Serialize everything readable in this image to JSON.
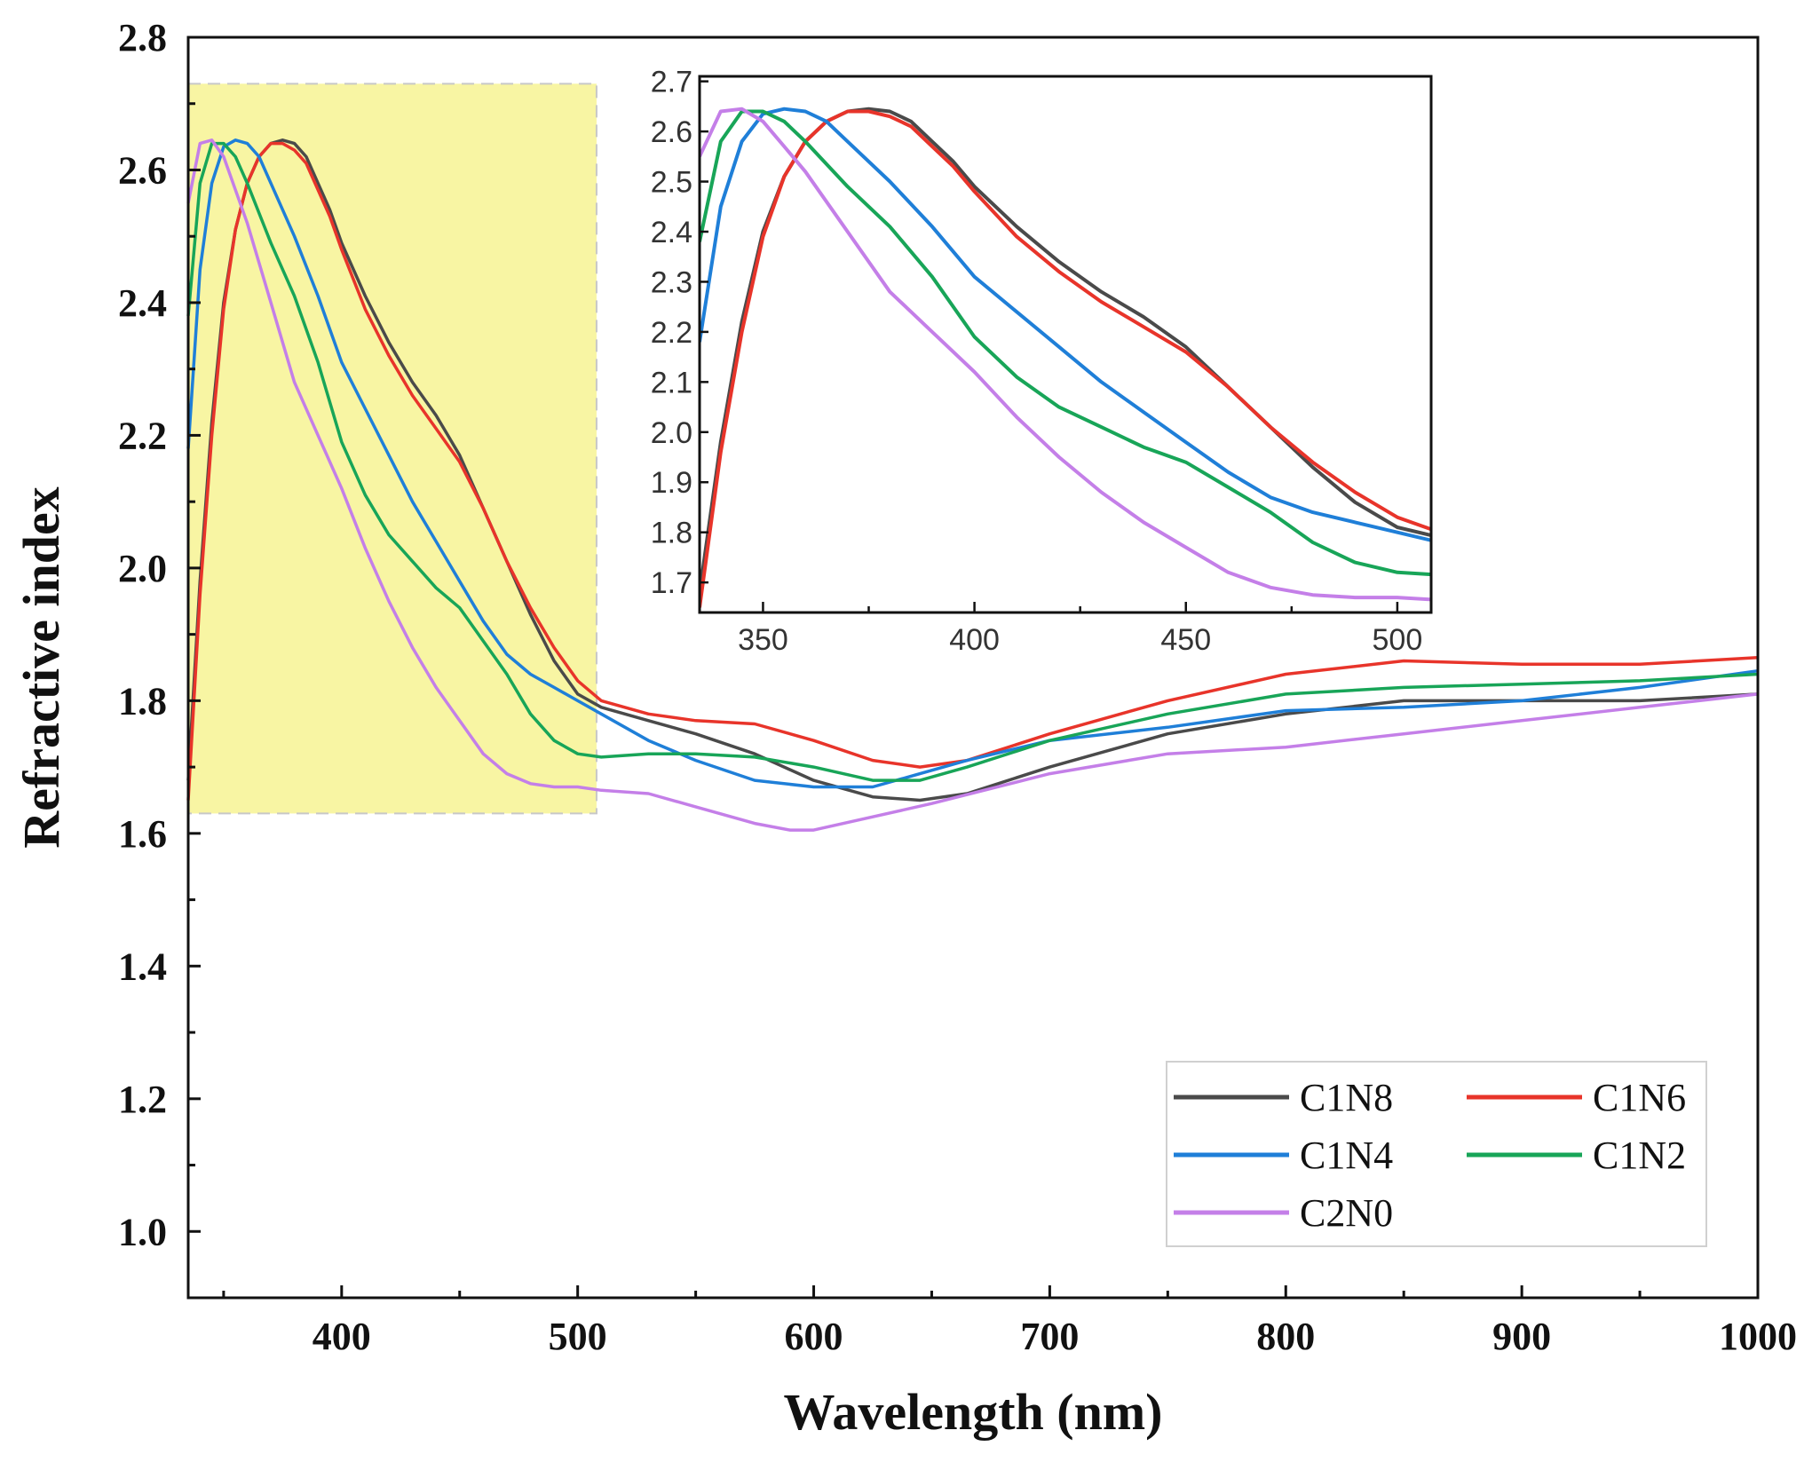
{
  "chart_data": {
    "type": "line",
    "xlabel": "Wavelength (nm)",
    "ylabel": "Refractive index",
    "xlim": [
      335,
      1000
    ],
    "ylim": [
      0.9,
      2.8
    ],
    "x_ticks": [
      400,
      500,
      600,
      700,
      800,
      900,
      1000
    ],
    "x_tick_labels": [
      "400",
      "500",
      "600",
      "700",
      "800",
      "900",
      "1000"
    ],
    "y_ticks": [
      1.0,
      1.2,
      1.4,
      1.6,
      1.8,
      2.0,
      2.2,
      2.4,
      2.6,
      2.8
    ],
    "y_tick_labels": [
      "1.0",
      "1.2",
      "1.4",
      "1.6",
      "1.8",
      "2.0",
      "2.2",
      "2.4",
      "2.6",
      "2.8"
    ],
    "highlight_region": {
      "x": [
        335,
        508
      ],
      "y": [
        1.63,
        2.73
      ],
      "color": "#f8f5a3"
    },
    "legend_position": "bottom-right",
    "series": [
      {
        "name": "C1N8",
        "color": "#4a4a4a",
        "points": [
          [
            335,
            1.68
          ],
          [
            340,
            1.98
          ],
          [
            345,
            2.22
          ],
          [
            350,
            2.4
          ],
          [
            355,
            2.51
          ],
          [
            360,
            2.58
          ],
          [
            365,
            2.62
          ],
          [
            370,
            2.64
          ],
          [
            375,
            2.645
          ],
          [
            380,
            2.64
          ],
          [
            385,
            2.62
          ],
          [
            390,
            2.58
          ],
          [
            395,
            2.54
          ],
          [
            400,
            2.49
          ],
          [
            410,
            2.41
          ],
          [
            420,
            2.34
          ],
          [
            430,
            2.28
          ],
          [
            440,
            2.23
          ],
          [
            450,
            2.17
          ],
          [
            460,
            2.09
          ],
          [
            470,
            2.01
          ],
          [
            480,
            1.93
          ],
          [
            490,
            1.86
          ],
          [
            500,
            1.81
          ],
          [
            510,
            1.79
          ],
          [
            530,
            1.77
          ],
          [
            550,
            1.75
          ],
          [
            575,
            1.72
          ],
          [
            600,
            1.68
          ],
          [
            625,
            1.655
          ],
          [
            645,
            1.65
          ],
          [
            665,
            1.66
          ],
          [
            700,
            1.7
          ],
          [
            750,
            1.75
          ],
          [
            800,
            1.78
          ],
          [
            850,
            1.8
          ],
          [
            900,
            1.8
          ],
          [
            950,
            1.8
          ],
          [
            1000,
            1.81
          ]
        ]
      },
      {
        "name": "C1N6",
        "color": "#e8342a",
        "points": [
          [
            335,
            1.65
          ],
          [
            340,
            1.96
          ],
          [
            345,
            2.2
          ],
          [
            350,
            2.39
          ],
          [
            355,
            2.51
          ],
          [
            360,
            2.58
          ],
          [
            365,
            2.62
          ],
          [
            370,
            2.64
          ],
          [
            375,
            2.64
          ],
          [
            380,
            2.63
          ],
          [
            385,
            2.61
          ],
          [
            390,
            2.57
          ],
          [
            395,
            2.53
          ],
          [
            400,
            2.48
          ],
          [
            410,
            2.39
          ],
          [
            420,
            2.32
          ],
          [
            430,
            2.26
          ],
          [
            440,
            2.21
          ],
          [
            450,
            2.16
          ],
          [
            460,
            2.09
          ],
          [
            470,
            2.01
          ],
          [
            480,
            1.94
          ],
          [
            490,
            1.88
          ],
          [
            500,
            1.83
          ],
          [
            510,
            1.8
          ],
          [
            530,
            1.78
          ],
          [
            550,
            1.77
          ],
          [
            575,
            1.765
          ],
          [
            600,
            1.74
          ],
          [
            625,
            1.71
          ],
          [
            645,
            1.7
          ],
          [
            665,
            1.71
          ],
          [
            700,
            1.75
          ],
          [
            750,
            1.8
          ],
          [
            800,
            1.84
          ],
          [
            850,
            1.86
          ],
          [
            900,
            1.855
          ],
          [
            950,
            1.855
          ],
          [
            1000,
            1.865
          ]
        ]
      },
      {
        "name": "C1N4",
        "color": "#1f7fd8",
        "points": [
          [
            335,
            2.18
          ],
          [
            340,
            2.45
          ],
          [
            345,
            2.58
          ],
          [
            350,
            2.635
          ],
          [
            355,
            2.645
          ],
          [
            360,
            2.64
          ],
          [
            365,
            2.62
          ],
          [
            370,
            2.58
          ],
          [
            380,
            2.5
          ],
          [
            390,
            2.41
          ],
          [
            400,
            2.31
          ],
          [
            410,
            2.24
          ],
          [
            420,
            2.17
          ],
          [
            430,
            2.1
          ],
          [
            440,
            2.04
          ],
          [
            450,
            1.98
          ],
          [
            460,
            1.92
          ],
          [
            470,
            1.87
          ],
          [
            480,
            1.84
          ],
          [
            490,
            1.82
          ],
          [
            500,
            1.8
          ],
          [
            510,
            1.78
          ],
          [
            530,
            1.74
          ],
          [
            550,
            1.71
          ],
          [
            575,
            1.68
          ],
          [
            600,
            1.67
          ],
          [
            625,
            1.67
          ],
          [
            645,
            1.69
          ],
          [
            665,
            1.71
          ],
          [
            700,
            1.74
          ],
          [
            750,
            1.76
          ],
          [
            800,
            1.785
          ],
          [
            850,
            1.79
          ],
          [
            900,
            1.8
          ],
          [
            950,
            1.82
          ],
          [
            1000,
            1.845
          ]
        ]
      },
      {
        "name": "C1N2",
        "color": "#18a558",
        "points": [
          [
            335,
            2.38
          ],
          [
            340,
            2.58
          ],
          [
            345,
            2.64
          ],
          [
            350,
            2.64
          ],
          [
            355,
            2.62
          ],
          [
            360,
            2.58
          ],
          [
            370,
            2.49
          ],
          [
            380,
            2.41
          ],
          [
            390,
            2.31
          ],
          [
            400,
            2.19
          ],
          [
            410,
            2.11
          ],
          [
            420,
            2.05
          ],
          [
            430,
            2.01
          ],
          [
            440,
            1.97
          ],
          [
            450,
            1.94
          ],
          [
            460,
            1.89
          ],
          [
            470,
            1.84
          ],
          [
            480,
            1.78
          ],
          [
            490,
            1.74
          ],
          [
            500,
            1.72
          ],
          [
            510,
            1.715
          ],
          [
            530,
            1.72
          ],
          [
            550,
            1.72
          ],
          [
            575,
            1.715
          ],
          [
            600,
            1.7
          ],
          [
            625,
            1.68
          ],
          [
            645,
            1.68
          ],
          [
            665,
            1.7
          ],
          [
            700,
            1.74
          ],
          [
            750,
            1.78
          ],
          [
            800,
            1.81
          ],
          [
            850,
            1.82
          ],
          [
            900,
            1.825
          ],
          [
            950,
            1.83
          ],
          [
            1000,
            1.84
          ]
        ]
      },
      {
        "name": "C2N0",
        "color": "#c47fe8",
        "points": [
          [
            335,
            2.55
          ],
          [
            340,
            2.64
          ],
          [
            345,
            2.645
          ],
          [
            350,
            2.62
          ],
          [
            355,
            2.57
          ],
          [
            360,
            2.52
          ],
          [
            370,
            2.4
          ],
          [
            380,
            2.28
          ],
          [
            390,
            2.2
          ],
          [
            400,
            2.12
          ],
          [
            410,
            2.03
          ],
          [
            420,
            1.95
          ],
          [
            430,
            1.88
          ],
          [
            440,
            1.82
          ],
          [
            450,
            1.77
          ],
          [
            460,
            1.72
          ],
          [
            470,
            1.69
          ],
          [
            480,
            1.675
          ],
          [
            490,
            1.67
          ],
          [
            500,
            1.67
          ],
          [
            510,
            1.665
          ],
          [
            530,
            1.66
          ],
          [
            550,
            1.64
          ],
          [
            575,
            1.615
          ],
          [
            590,
            1.605
          ],
          [
            600,
            1.605
          ],
          [
            625,
            1.625
          ],
          [
            650,
            1.645
          ],
          [
            700,
            1.69
          ],
          [
            750,
            1.72
          ],
          [
            800,
            1.73
          ],
          [
            850,
            1.75
          ],
          [
            900,
            1.77
          ],
          [
            950,
            1.79
          ],
          [
            1000,
            1.81
          ]
        ]
      }
    ],
    "inset": {
      "xlim": [
        335,
        508
      ],
      "ylim": [
        1.64,
        2.71
      ],
      "x_ticks": [
        350,
        400,
        450,
        500
      ],
      "x_tick_labels": [
        "350",
        "400",
        "450",
        "500"
      ],
      "y_ticks": [
        1.7,
        1.8,
        1.9,
        2.0,
        2.1,
        2.2,
        2.3,
        2.4,
        2.5,
        2.6,
        2.7
      ],
      "y_tick_labels": [
        "1.7",
        "1.8",
        "1.9",
        "2.0",
        "2.1",
        "2.2",
        "2.3",
        "2.4",
        "2.5",
        "2.6",
        "2.7"
      ]
    }
  }
}
